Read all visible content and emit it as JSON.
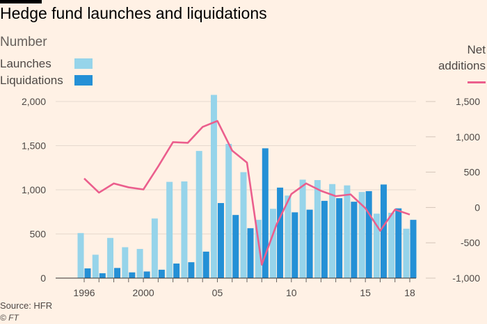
{
  "header": {
    "title": "Hedge fund launches and liquidations",
    "subtitle": "Number"
  },
  "legend": {
    "launches": "Launches",
    "liquidations": "Liquidations",
    "net_line1": "Net",
    "net_line2": "additions"
  },
  "footer": {
    "source": "Source: HFR",
    "credit": "© FT"
  },
  "colors": {
    "launches": "#96d4ea",
    "liquidations": "#2490d6",
    "net": "#eb5e8d",
    "background": "#fff1e5"
  },
  "chart_data": {
    "type": "bar",
    "x": [
      1996,
      1997,
      1998,
      1999,
      2000,
      2001,
      2002,
      2003,
      2004,
      2005,
      2006,
      2007,
      2008,
      2009,
      2010,
      2011,
      2012,
      2013,
      2014,
      2015,
      2016,
      2017,
      2018
    ],
    "x_tick_labels": [
      {
        "x": 1996,
        "label": "1996"
      },
      {
        "x": 2000,
        "label": "2000"
      },
      {
        "x": 2005,
        "label": "05"
      },
      {
        "x": 2010,
        "label": "10"
      },
      {
        "x": 2015,
        "label": "15"
      },
      {
        "x": 2018,
        "label": "18"
      }
    ],
    "series": [
      {
        "name": "Launches",
        "type": "bar",
        "axis": "left",
        "values": [
          510,
          265,
          455,
          350,
          330,
          675,
          1090,
          1095,
          1440,
          2075,
          1520,
          1200,
          660,
          785,
          935,
          1115,
          1110,
          1065,
          1050,
          975,
          730,
          740,
          560
        ]
      },
      {
        "name": "Liquidations",
        "type": "bar",
        "axis": "left",
        "values": [
          110,
          55,
          115,
          65,
          75,
          95,
          165,
          180,
          300,
          850,
          715,
          565,
          1470,
          1025,
          745,
          775,
          875,
          905,
          865,
          985,
          1060,
          790,
          660
        ]
      },
      {
        "name": "Net additions",
        "type": "line",
        "axis": "right",
        "values": [
          410,
          210,
          340,
          285,
          255,
          580,
          925,
          915,
          1140,
          1225,
          805,
          635,
          -810,
          -240,
          190,
          340,
          235,
          160,
          185,
          -10,
          -330,
          -30,
          -100
        ]
      }
    ],
    "left_axis": {
      "ylim": [
        0,
        2000
      ],
      "ticks": [
        0,
        500,
        1000,
        1500,
        2000
      ],
      "tick_labels": [
        "0",
        "500",
        "1,000",
        "1,500",
        "2,000"
      ]
    },
    "right_axis": {
      "ylim": [
        -1000,
        1500
      ],
      "ticks": [
        -1000,
        -500,
        0,
        500,
        1000,
        1500
      ],
      "tick_labels": [
        "-1,000",
        "-500",
        "0",
        "500",
        "1,000",
        "1,500"
      ]
    },
    "grid": true,
    "legend_position": "top"
  }
}
